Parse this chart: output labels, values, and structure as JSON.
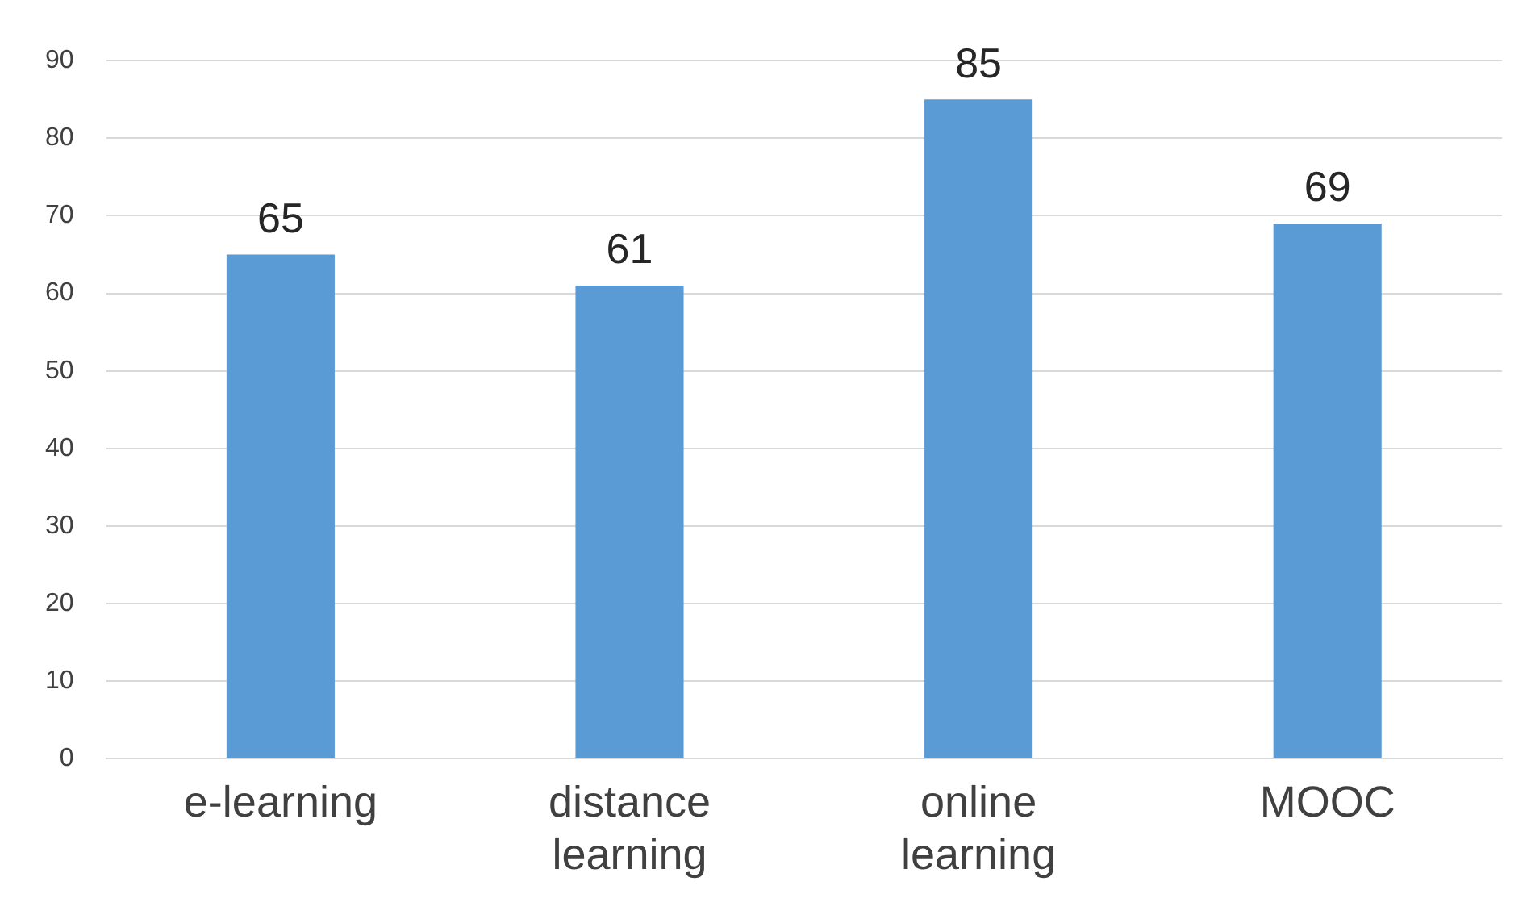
{
  "chart_data": {
    "type": "bar",
    "categories": [
      "e-learning",
      "distance learning",
      "online learning",
      "MOOC"
    ],
    "values": [
      65,
      61,
      85,
      69
    ],
    "color": "#5b9bd5",
    "ylim": [
      0,
      90
    ],
    "yticks": [
      0,
      10,
      20,
      30,
      40,
      50,
      60,
      70,
      80,
      90
    ],
    "grid": "y",
    "data_labels": true
  }
}
